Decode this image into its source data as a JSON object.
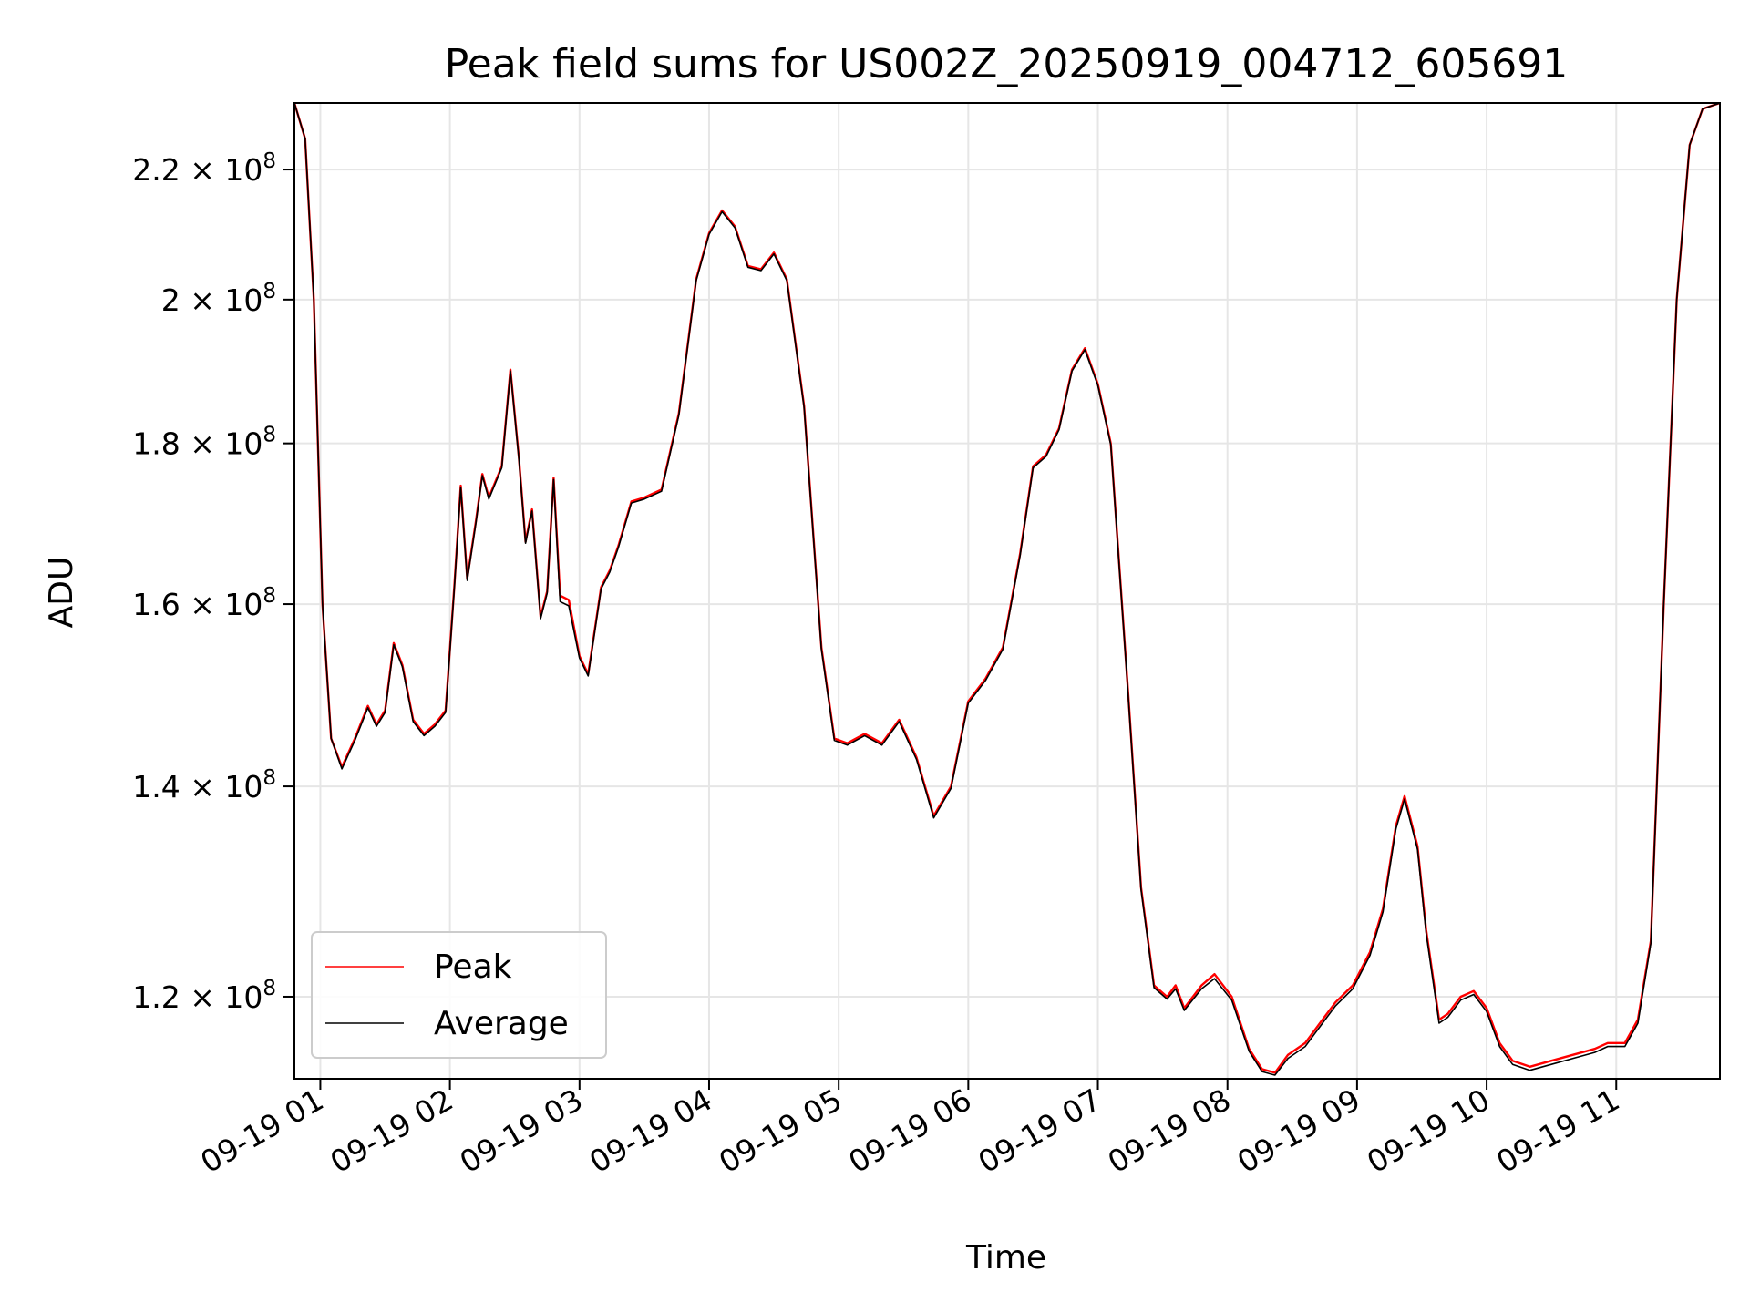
{
  "chart_data": {
    "type": "line",
    "title": "Peak field sums for US002Z_20250919_004712_605691",
    "xlabel": "Time",
    "ylabel": "ADU",
    "x_axis": {
      "type": "time",
      "range": [
        "2025-09-19 00:48",
        "2025-09-19 11:48"
      ],
      "tick_labels": [
        "09-19 01",
        "09-19 02",
        "09-19 03",
        "09-19 04",
        "09-19 05",
        "09-19 06",
        "09-19 07",
        "09-19 08",
        "09-19 09",
        "09-19 10",
        "09-19 11"
      ]
    },
    "y_axis": {
      "scale": "log",
      "range": [
        113000000,
        231000000
      ],
      "ticks": [
        {
          "value": 120000000,
          "mantissa": "1.2",
          "times": "×",
          "base": "10",
          "exp": "8"
        },
        {
          "value": 140000000,
          "mantissa": "1.4",
          "times": "×",
          "base": "10",
          "exp": "8"
        },
        {
          "value": 160000000,
          "mantissa": "1.6",
          "times": "×",
          "base": "10",
          "exp": "8"
        },
        {
          "value": 180000000,
          "mantissa": "1.8",
          "times": "×",
          "base": "10",
          "exp": "8"
        },
        {
          "value": 200000000,
          "mantissa": "2",
          "times": "×",
          "base": "10",
          "exp": "8"
        },
        {
          "value": 220000000,
          "mantissa": "2.2",
          "times": "×",
          "base": "10",
          "exp": "8"
        }
      ]
    },
    "grid": true,
    "legend": {
      "position": "lower-left"
    },
    "series": [
      {
        "name": "Peak",
        "color": "#ff0000",
        "points": [
          [
            "2025-09-19 00:48",
            231000000
          ],
          [
            "2025-09-19 00:53",
            225000000
          ],
          [
            "2025-09-19 00:57",
            200000000
          ],
          [
            "2025-09-19 01:01",
            160000000
          ],
          [
            "2025-09-19 01:05",
            145000000
          ],
          [
            "2025-09-19 01:10",
            142000000
          ],
          [
            "2025-09-19 01:16",
            145000000
          ],
          [
            "2025-09-19 01:22",
            148500000
          ],
          [
            "2025-09-19 01:26",
            146500000
          ],
          [
            "2025-09-19 01:30",
            148000000
          ],
          [
            "2025-09-19 01:34",
            155500000
          ],
          [
            "2025-09-19 01:38",
            153000000
          ],
          [
            "2025-09-19 01:43",
            147000000
          ],
          [
            "2025-09-19 01:48",
            145500000
          ],
          [
            "2025-09-19 01:53",
            146500000
          ],
          [
            "2025-09-19 01:58",
            148000000
          ],
          [
            "2025-09-19 02:02",
            162000000
          ],
          [
            "2025-09-19 02:05",
            174500000
          ],
          [
            "2025-09-19 02:08",
            163000000
          ],
          [
            "2025-09-19 02:12",
            170000000
          ],
          [
            "2025-09-19 02:15",
            176000000
          ],
          [
            "2025-09-19 02:18",
            173000000
          ],
          [
            "2025-09-19 02:24",
            177000000
          ],
          [
            "2025-09-19 02:28",
            190000000
          ],
          [
            "2025-09-19 02:32",
            178000000
          ],
          [
            "2025-09-19 02:35",
            167500000
          ],
          [
            "2025-09-19 02:38",
            171500000
          ],
          [
            "2025-09-19 02:42",
            158500000
          ],
          [
            "2025-09-19 02:45",
            161500000
          ],
          [
            "2025-09-19 02:48",
            175500000
          ],
          [
            "2025-09-19 02:51",
            161000000
          ],
          [
            "2025-09-19 02:55",
            160500000
          ],
          [
            "2025-09-19 03:00",
            154000000
          ],
          [
            "2025-09-19 03:04",
            152000000
          ],
          [
            "2025-09-19 03:10",
            162000000
          ],
          [
            "2025-09-19 03:14",
            164000000
          ],
          [
            "2025-09-19 03:18",
            167000000
          ],
          [
            "2025-09-19 03:24",
            172500000
          ],
          [
            "2025-09-19 03:30",
            173000000
          ],
          [
            "2025-09-19 03:38",
            174000000
          ],
          [
            "2025-09-19 03:46",
            184000000
          ],
          [
            "2025-09-19 03:54",
            203000000
          ],
          [
            "2025-09-19 04:00",
            210000000
          ],
          [
            "2025-09-19 04:06",
            213500000
          ],
          [
            "2025-09-19 04:12",
            211000000
          ],
          [
            "2025-09-19 04:18",
            205000000
          ],
          [
            "2025-09-19 04:24",
            204500000
          ],
          [
            "2025-09-19 04:30",
            207000000
          ],
          [
            "2025-09-19 04:36",
            203000000
          ],
          [
            "2025-09-19 04:44",
            185000000
          ],
          [
            "2025-09-19 04:52",
            155000000
          ],
          [
            "2025-09-19 04:58",
            145000000
          ],
          [
            "2025-09-19 05:04",
            144500000
          ],
          [
            "2025-09-19 05:12",
            145500000
          ],
          [
            "2025-09-19 05:20",
            144500000
          ],
          [
            "2025-09-19 05:28",
            147000000
          ],
          [
            "2025-09-19 05:36",
            143000000
          ],
          [
            "2025-09-19 05:44",
            137000000
          ],
          [
            "2025-09-19 05:52",
            140000000
          ],
          [
            "2025-09-19 06:00",
            149000000
          ],
          [
            "2025-09-19 06:08",
            151500000
          ],
          [
            "2025-09-19 06:16",
            155000000
          ],
          [
            "2025-09-19 06:24",
            166000000
          ],
          [
            "2025-09-19 06:30",
            177000000
          ],
          [
            "2025-09-19 06:36",
            178500000
          ],
          [
            "2025-09-19 06:42",
            182000000
          ],
          [
            "2025-09-19 06:48",
            190000000
          ],
          [
            "2025-09-19 06:54",
            193000000
          ],
          [
            "2025-09-19 07:00",
            188000000
          ],
          [
            "2025-09-19 07:06",
            180000000
          ],
          [
            "2025-09-19 07:14",
            150000000
          ],
          [
            "2025-09-19 07:20",
            130000000
          ],
          [
            "2025-09-19 07:26",
            121000000
          ],
          [
            "2025-09-19 07:32",
            120000000
          ],
          [
            "2025-09-19 07:36",
            121000000
          ],
          [
            "2025-09-19 07:40",
            119000000
          ],
          [
            "2025-09-19 07:48",
            121000000
          ],
          [
            "2025-09-19 07:54",
            122000000
          ],
          [
            "2025-09-19 08:02",
            120000000
          ],
          [
            "2025-09-19 08:10",
            115500000
          ],
          [
            "2025-09-19 08:16",
            113800000
          ],
          [
            "2025-09-19 08:22",
            113500000
          ],
          [
            "2025-09-19 08:28",
            115000000
          ],
          [
            "2025-09-19 08:36",
            116000000
          ],
          [
            "2025-09-19 08:44",
            118000000
          ],
          [
            "2025-09-19 08:50",
            119500000
          ],
          [
            "2025-09-19 08:58",
            121000000
          ],
          [
            "2025-09-19 09:06",
            124000000
          ],
          [
            "2025-09-19 09:12",
            128000000
          ],
          [
            "2025-09-19 09:18",
            136000000
          ],
          [
            "2025-09-19 09:22",
            139000000
          ],
          [
            "2025-09-19 09:28",
            134000000
          ],
          [
            "2025-09-19 09:32",
            126000000
          ],
          [
            "2025-09-19 09:38",
            118000000
          ],
          [
            "2025-09-19 09:42",
            118500000
          ],
          [
            "2025-09-19 09:48",
            120000000
          ],
          [
            "2025-09-19 09:54",
            120500000
          ],
          [
            "2025-09-19 10:00",
            119000000
          ],
          [
            "2025-09-19 10:06",
            116000000
          ],
          [
            "2025-09-19 10:12",
            114500000
          ],
          [
            "2025-09-19 10:20",
            114000000
          ],
          [
            "2025-09-19 10:30",
            114500000
          ],
          [
            "2025-09-19 10:40",
            115000000
          ],
          [
            "2025-09-19 10:50",
            115500000
          ],
          [
            "2025-09-19 10:56",
            116000000
          ],
          [
            "2025-09-19 11:04",
            116000000
          ],
          [
            "2025-09-19 11:10",
            118000000
          ],
          [
            "2025-09-19 11:16",
            125000000
          ],
          [
            "2025-09-19 11:22",
            160000000
          ],
          [
            "2025-09-19 11:28",
            200000000
          ],
          [
            "2025-09-19 11:34",
            224000000
          ],
          [
            "2025-09-19 11:40",
            230000000
          ],
          [
            "2025-09-19 11:48",
            231000000
          ]
        ]
      },
      {
        "name": "Average",
        "color": "#000000",
        "points": [
          [
            "2025-09-19 00:48",
            231000000
          ],
          [
            "2025-09-19 00:53",
            225000000
          ],
          [
            "2025-09-19 00:57",
            200000000
          ],
          [
            "2025-09-19 01:01",
            160000000
          ],
          [
            "2025-09-19 01:05",
            145000000
          ],
          [
            "2025-09-19 01:10",
            141800000
          ],
          [
            "2025-09-19 01:16",
            144800000
          ],
          [
            "2025-09-19 01:22",
            148300000
          ],
          [
            "2025-09-19 01:26",
            146300000
          ],
          [
            "2025-09-19 01:30",
            147800000
          ],
          [
            "2025-09-19 01:34",
            155300000
          ],
          [
            "2025-09-19 01:38",
            152800000
          ],
          [
            "2025-09-19 01:43",
            146800000
          ],
          [
            "2025-09-19 01:48",
            145300000
          ],
          [
            "2025-09-19 01:53",
            146300000
          ],
          [
            "2025-09-19 01:58",
            147800000
          ],
          [
            "2025-09-19 02:02",
            161800000
          ],
          [
            "2025-09-19 02:05",
            174300000
          ],
          [
            "2025-09-19 02:08",
            162800000
          ],
          [
            "2025-09-19 02:12",
            169800000
          ],
          [
            "2025-09-19 02:15",
            175800000
          ],
          [
            "2025-09-19 02:18",
            172800000
          ],
          [
            "2025-09-19 02:24",
            176800000
          ],
          [
            "2025-09-19 02:28",
            189800000
          ],
          [
            "2025-09-19 02:32",
            177800000
          ],
          [
            "2025-09-19 02:35",
            167300000
          ],
          [
            "2025-09-19 02:38",
            171300000
          ],
          [
            "2025-09-19 02:42",
            158300000
          ],
          [
            "2025-09-19 02:45",
            161300000
          ],
          [
            "2025-09-19 02:48",
            175300000
          ],
          [
            "2025-09-19 02:51",
            160300000
          ],
          [
            "2025-09-19 02:55",
            159800000
          ],
          [
            "2025-09-19 03:00",
            153800000
          ],
          [
            "2025-09-19 03:04",
            151800000
          ],
          [
            "2025-09-19 03:10",
            161800000
          ],
          [
            "2025-09-19 03:14",
            163800000
          ],
          [
            "2025-09-19 03:18",
            166800000
          ],
          [
            "2025-09-19 03:24",
            172300000
          ],
          [
            "2025-09-19 03:30",
            172800000
          ],
          [
            "2025-09-19 03:38",
            173800000
          ],
          [
            "2025-09-19 03:46",
            183800000
          ],
          [
            "2025-09-19 03:54",
            202800000
          ],
          [
            "2025-09-19 04:00",
            209800000
          ],
          [
            "2025-09-19 04:06",
            213300000
          ],
          [
            "2025-09-19 04:12",
            210800000
          ],
          [
            "2025-09-19 04:18",
            204800000
          ],
          [
            "2025-09-19 04:24",
            204300000
          ],
          [
            "2025-09-19 04:30",
            206800000
          ],
          [
            "2025-09-19 04:36",
            202800000
          ],
          [
            "2025-09-19 04:44",
            184800000
          ],
          [
            "2025-09-19 04:52",
            154800000
          ],
          [
            "2025-09-19 04:58",
            144800000
          ],
          [
            "2025-09-19 05:04",
            144300000
          ],
          [
            "2025-09-19 05:12",
            145300000
          ],
          [
            "2025-09-19 05:20",
            144300000
          ],
          [
            "2025-09-19 05:28",
            146800000
          ],
          [
            "2025-09-19 05:36",
            142800000
          ],
          [
            "2025-09-19 05:44",
            136800000
          ],
          [
            "2025-09-19 05:52",
            139800000
          ],
          [
            "2025-09-19 06:00",
            148800000
          ],
          [
            "2025-09-19 06:08",
            151300000
          ],
          [
            "2025-09-19 06:16",
            154800000
          ],
          [
            "2025-09-19 06:24",
            165800000
          ],
          [
            "2025-09-19 06:30",
            176800000
          ],
          [
            "2025-09-19 06:36",
            178300000
          ],
          [
            "2025-09-19 06:42",
            181800000
          ],
          [
            "2025-09-19 06:48",
            189800000
          ],
          [
            "2025-09-19 06:54",
            192800000
          ],
          [
            "2025-09-19 07:00",
            187800000
          ],
          [
            "2025-09-19 07:06",
            179800000
          ],
          [
            "2025-09-19 07:14",
            149800000
          ],
          [
            "2025-09-19 07:20",
            129800000
          ],
          [
            "2025-09-19 07:26",
            120800000
          ],
          [
            "2025-09-19 07:32",
            119800000
          ],
          [
            "2025-09-19 07:36",
            120700000
          ],
          [
            "2025-09-19 07:40",
            118800000
          ],
          [
            "2025-09-19 07:48",
            120700000
          ],
          [
            "2025-09-19 07:54",
            121600000
          ],
          [
            "2025-09-19 08:02",
            119700000
          ],
          [
            "2025-09-19 08:10",
            115300000
          ],
          [
            "2025-09-19 08:16",
            113600000
          ],
          [
            "2025-09-19 08:22",
            113300000
          ],
          [
            "2025-09-19 08:28",
            114700000
          ],
          [
            "2025-09-19 08:36",
            115700000
          ],
          [
            "2025-09-19 08:44",
            117700000
          ],
          [
            "2025-09-19 08:50",
            119200000
          ],
          [
            "2025-09-19 08:58",
            120700000
          ],
          [
            "2025-09-19 09:06",
            123700000
          ],
          [
            "2025-09-19 09:12",
            127700000
          ],
          [
            "2025-09-19 09:18",
            135700000
          ],
          [
            "2025-09-19 09:22",
            138700000
          ],
          [
            "2025-09-19 09:28",
            133700000
          ],
          [
            "2025-09-19 09:32",
            125700000
          ],
          [
            "2025-09-19 09:38",
            117700000
          ],
          [
            "2025-09-19 09:42",
            118200000
          ],
          [
            "2025-09-19 09:48",
            119700000
          ],
          [
            "2025-09-19 09:54",
            120200000
          ],
          [
            "2025-09-19 10:00",
            118700000
          ],
          [
            "2025-09-19 10:06",
            115700000
          ],
          [
            "2025-09-19 10:12",
            114200000
          ],
          [
            "2025-09-19 10:20",
            113700000
          ],
          [
            "2025-09-19 10:30",
            114200000
          ],
          [
            "2025-09-19 10:40",
            114700000
          ],
          [
            "2025-09-19 10:50",
            115200000
          ],
          [
            "2025-09-19 10:56",
            115700000
          ],
          [
            "2025-09-19 11:04",
            115700000
          ],
          [
            "2025-09-19 11:10",
            117700000
          ],
          [
            "2025-09-19 11:16",
            124800000
          ],
          [
            "2025-09-19 11:22",
            160000000
          ],
          [
            "2025-09-19 11:28",
            200000000
          ],
          [
            "2025-09-19 11:34",
            224000000
          ],
          [
            "2025-09-19 11:40",
            230000000
          ],
          [
            "2025-09-19 11:48",
            231000000
          ]
        ]
      }
    ]
  }
}
